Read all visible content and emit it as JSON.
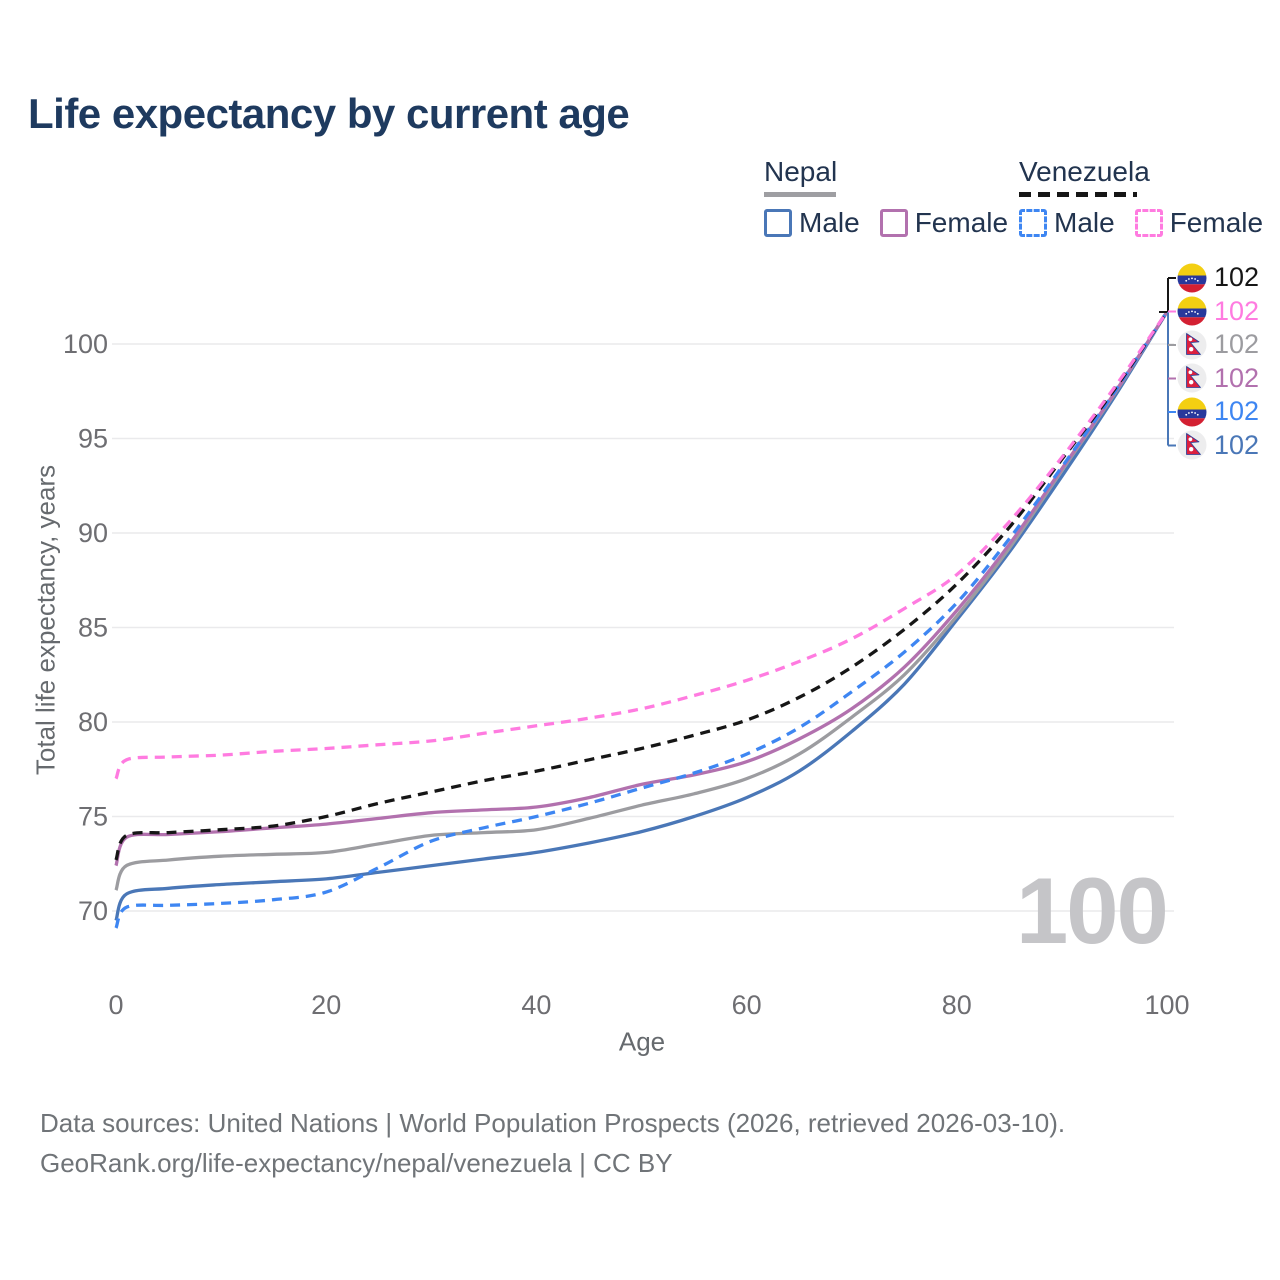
{
  "title": "Life expectancy by current age",
  "watermark": "100",
  "legend": {
    "groups": [
      {
        "country": "Nepal",
        "line_style": "solid",
        "underline_color": "#9e9ea2",
        "items": [
          {
            "label": "Male",
            "color": "#4a77b7",
            "dashed": false
          },
          {
            "label": "Female",
            "color": "#b271ae",
            "dashed": false
          }
        ]
      },
      {
        "country": "Venezuela",
        "line_style": "dashed",
        "underline_color": "#161616",
        "items": [
          {
            "label": "Male",
            "color": "#3e86f2",
            "dashed": true
          },
          {
            "label": "Female",
            "color": "#ff7be0",
            "dashed": true
          }
        ]
      }
    ]
  },
  "end_labels": [
    {
      "value": "102",
      "flag": "venezuela",
      "color": "#161616"
    },
    {
      "value": "102",
      "flag": "venezuela",
      "color": "#ff7be0"
    },
    {
      "value": "102",
      "flag": "nepal",
      "color": "#9c9ca0"
    },
    {
      "value": "102",
      "flag": "nepal",
      "color": "#b271ae"
    },
    {
      "value": "102",
      "flag": "venezuela",
      "color": "#3e86f2"
    },
    {
      "value": "102",
      "flag": "nepal",
      "color": "#4a77b7"
    }
  ],
  "footer": {
    "line1": "Data sources: United Nations | World Population Prospects (2026, retrieved 2026-03-10).",
    "line2": "GeoRank.org/life-expectancy/nepal/venezuela | CC BY"
  },
  "chart_data": {
    "type": "line",
    "title": "Life expectancy by current age",
    "xlabel": "Age",
    "ylabel": "Total life expectancy, years",
    "xlim": [
      0,
      100
    ],
    "ylim": [
      68.5,
      103.5
    ],
    "x_ticks": [
      0,
      20,
      40,
      60,
      80,
      100
    ],
    "y_ticks": [
      70,
      75,
      80,
      85,
      90,
      95,
      100
    ],
    "grid": "horizontal",
    "legend_position": "top-right",
    "x": [
      0,
      1,
      5,
      10,
      15,
      20,
      25,
      30,
      35,
      40,
      45,
      50,
      55,
      60,
      65,
      70,
      75,
      80,
      85,
      90,
      95,
      100
    ],
    "series": [
      {
        "name": "Nepal Male",
        "country": "Nepal",
        "sex": "Male",
        "color": "#4a77b7",
        "dashed": false,
        "values": [
          69.5,
          70.9,
          71.2,
          71.4,
          71.55,
          71.7,
          72.05,
          72.4,
          72.75,
          73.1,
          73.6,
          74.2,
          75.0,
          76.0,
          77.4,
          79.5,
          82.0,
          85.4,
          89.0,
          93.0,
          97.2,
          101.7
        ]
      },
      {
        "name": "Nepal Both sexes",
        "country": "Nepal",
        "sex": "Both",
        "color": "#9c9ca0",
        "dashed": false,
        "values": [
          71.1,
          72.4,
          72.7,
          72.9,
          73.0,
          73.1,
          73.55,
          74.0,
          74.15,
          74.3,
          74.9,
          75.6,
          76.2,
          77.0,
          78.3,
          80.25,
          82.5,
          85.6,
          89.2,
          93.3,
          97.35,
          101.7
        ]
      },
      {
        "name": "Nepal Female",
        "country": "Nepal",
        "sex": "Female",
        "color": "#b271ae",
        "dashed": false,
        "values": [
          72.4,
          73.9,
          74.05,
          74.2,
          74.4,
          74.6,
          74.9,
          75.2,
          75.35,
          75.5,
          76.0,
          76.7,
          77.2,
          77.9,
          79.1,
          80.7,
          82.9,
          85.9,
          89.4,
          93.4,
          97.4,
          101.7
        ]
      },
      {
        "name": "Venezuela Male",
        "country": "Venezuela",
        "sex": "Male",
        "color": "#3e86f2",
        "dashed": true,
        "values": [
          69.1,
          70.2,
          70.3,
          70.4,
          70.6,
          71.0,
          72.3,
          73.7,
          74.4,
          75.0,
          75.7,
          76.5,
          77.3,
          78.3,
          79.7,
          81.6,
          83.7,
          86.3,
          89.7,
          93.5,
          97.45,
          101.7
        ]
      },
      {
        "name": "Venezuela Both sexes",
        "country": "Venezuela",
        "sex": "Both",
        "color": "#161616",
        "dashed": true,
        "values": [
          72.7,
          74.0,
          74.15,
          74.3,
          74.5,
          75.0,
          75.7,
          76.3,
          76.9,
          77.4,
          78.0,
          78.6,
          79.3,
          80.1,
          81.3,
          82.9,
          84.9,
          87.3,
          90.3,
          93.9,
          97.6,
          101.7
        ]
      },
      {
        "name": "Venezuela Female",
        "country": "Venezuela",
        "sex": "Female",
        "color": "#ff7be0",
        "dashed": true,
        "values": [
          77.0,
          78.0,
          78.15,
          78.25,
          78.45,
          78.6,
          78.8,
          79.0,
          79.4,
          79.8,
          80.2,
          80.7,
          81.4,
          82.2,
          83.2,
          84.4,
          86.0,
          87.8,
          90.6,
          94.0,
          97.7,
          101.7
        ]
      }
    ],
    "end_value": 102
  }
}
